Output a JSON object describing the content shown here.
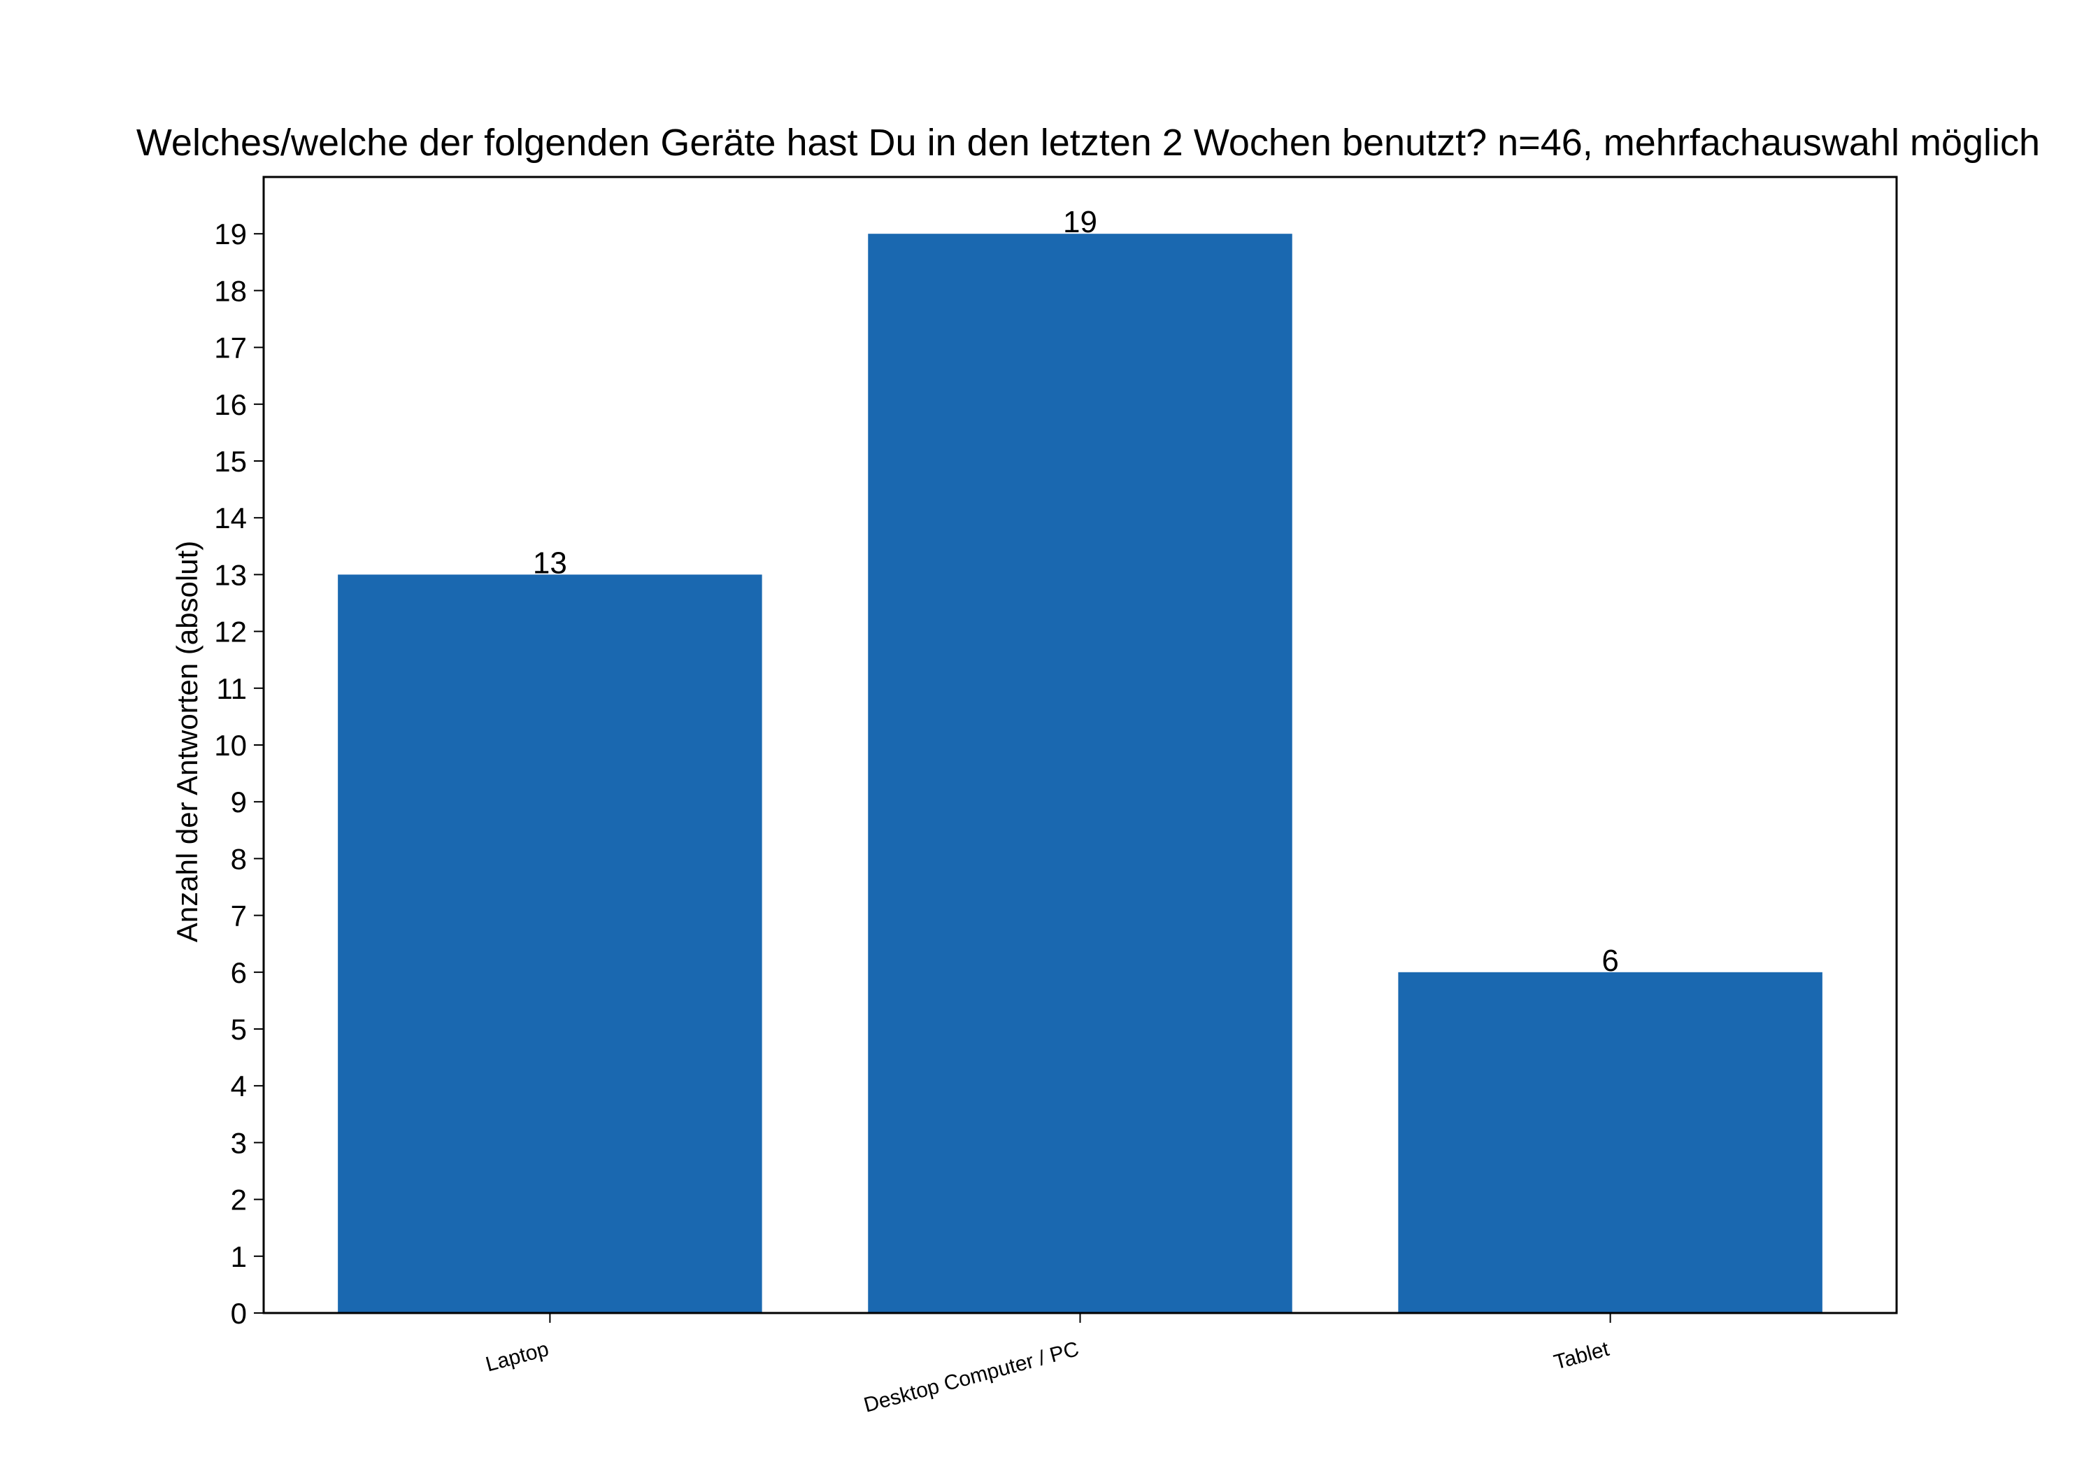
{
  "chart_data": {
    "type": "bar",
    "title": "Welches/welche der folgenden Geräte hast Du in den letzten 2 Wochen benutzt? n=46, mehrfachauswahl möglich",
    "xlabel": "",
    "ylabel": "Anzahl der Antworten (absolut)",
    "categories": [
      "Laptop",
      "Desktop Computer / PC",
      "Tablet"
    ],
    "values": [
      13,
      19,
      6
    ],
    "data_labels": [
      "13",
      "19",
      "6"
    ],
    "ylim": [
      0,
      20
    ],
    "yticks": [
      0,
      1,
      2,
      3,
      4,
      5,
      6,
      7,
      8,
      9,
      10,
      11,
      12,
      13,
      14,
      15,
      16,
      17,
      18,
      19
    ],
    "bar_color": "#1a68b0",
    "grid": false,
    "legend": "none"
  }
}
